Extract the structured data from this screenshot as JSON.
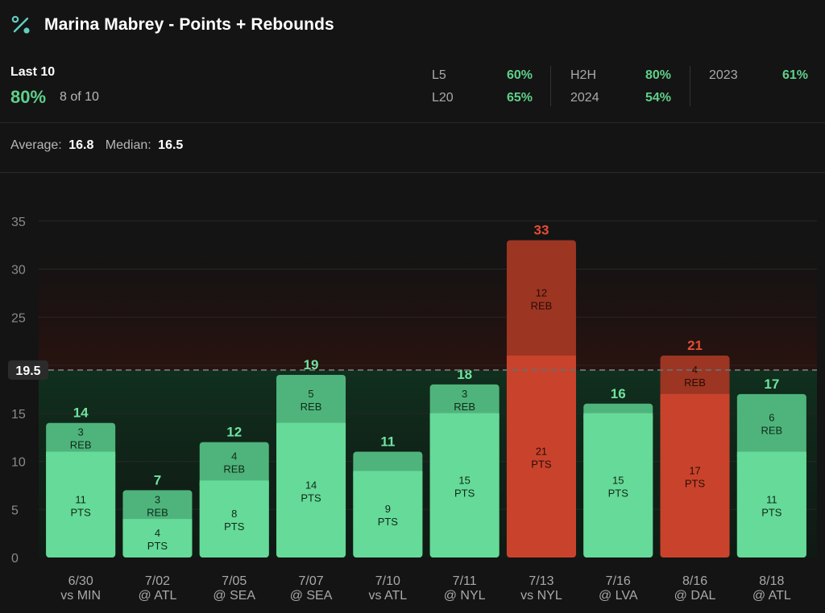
{
  "header": {
    "title": "Marina Mabrey - Points + Rebounds",
    "icon": "percent-icon"
  },
  "summary": {
    "last10_label": "Last 10",
    "last10_pct": "80%",
    "last10_count": "8 of 10",
    "stats": [
      {
        "label": "L5",
        "value": "60%"
      },
      {
        "label": "L20",
        "value": "65%"
      },
      {
        "label": "H2H",
        "value": "80%"
      },
      {
        "label": "2024",
        "value": "54%"
      },
      {
        "label": "2023",
        "value": "61%"
      }
    ],
    "average_label": "Average:",
    "average_value": "16.8",
    "median_label": "Median:",
    "median_value": "16.5"
  },
  "colors": {
    "hit_pts": "#66da98",
    "hit_reb": "#4fb47c",
    "hit_label": "#6fe39f",
    "miss_pts": "#c9432c",
    "miss_reb": "#9c3522",
    "miss_label": "#e34c34",
    "background": "#141414"
  },
  "chart_data": {
    "type": "bar",
    "stacked": true,
    "line_value": 19.5,
    "line_label": "19.5",
    "ylim": [
      0,
      35
    ],
    "yticks": [
      0,
      5,
      10,
      15,
      20,
      25,
      30,
      35
    ],
    "categories": [
      {
        "date": "6/30",
        "opp": "vs MIN"
      },
      {
        "date": "7/02",
        "opp": "@ ATL"
      },
      {
        "date": "7/05",
        "opp": "@ SEA"
      },
      {
        "date": "7/07",
        "opp": "@ SEA"
      },
      {
        "date": "7/10",
        "opp": "vs ATL"
      },
      {
        "date": "7/11",
        "opp": "@ NYL"
      },
      {
        "date": "7/13",
        "opp": "vs NYL"
      },
      {
        "date": "7/16",
        "opp": "@ LVA"
      },
      {
        "date": "8/16",
        "opp": "@ DAL"
      },
      {
        "date": "8/18",
        "opp": "@ ATL"
      }
    ],
    "series": [
      {
        "name": "PTS",
        "values": [
          11,
          4,
          8,
          14,
          9,
          15,
          21,
          15,
          17,
          11
        ]
      },
      {
        "name": "REB",
        "values": [
          3,
          3,
          4,
          5,
          2,
          3,
          12,
          1,
          4,
          6
        ]
      }
    ],
    "totals": [
      14,
      7,
      12,
      19,
      11,
      18,
      33,
      16,
      21,
      17
    ],
    "reb_labels_shown": [
      true,
      true,
      true,
      true,
      false,
      true,
      true,
      false,
      true,
      true
    ],
    "result": [
      "hit",
      "hit",
      "hit",
      "hit",
      "hit",
      "hit",
      "miss",
      "hit",
      "miss",
      "hit"
    ]
  }
}
